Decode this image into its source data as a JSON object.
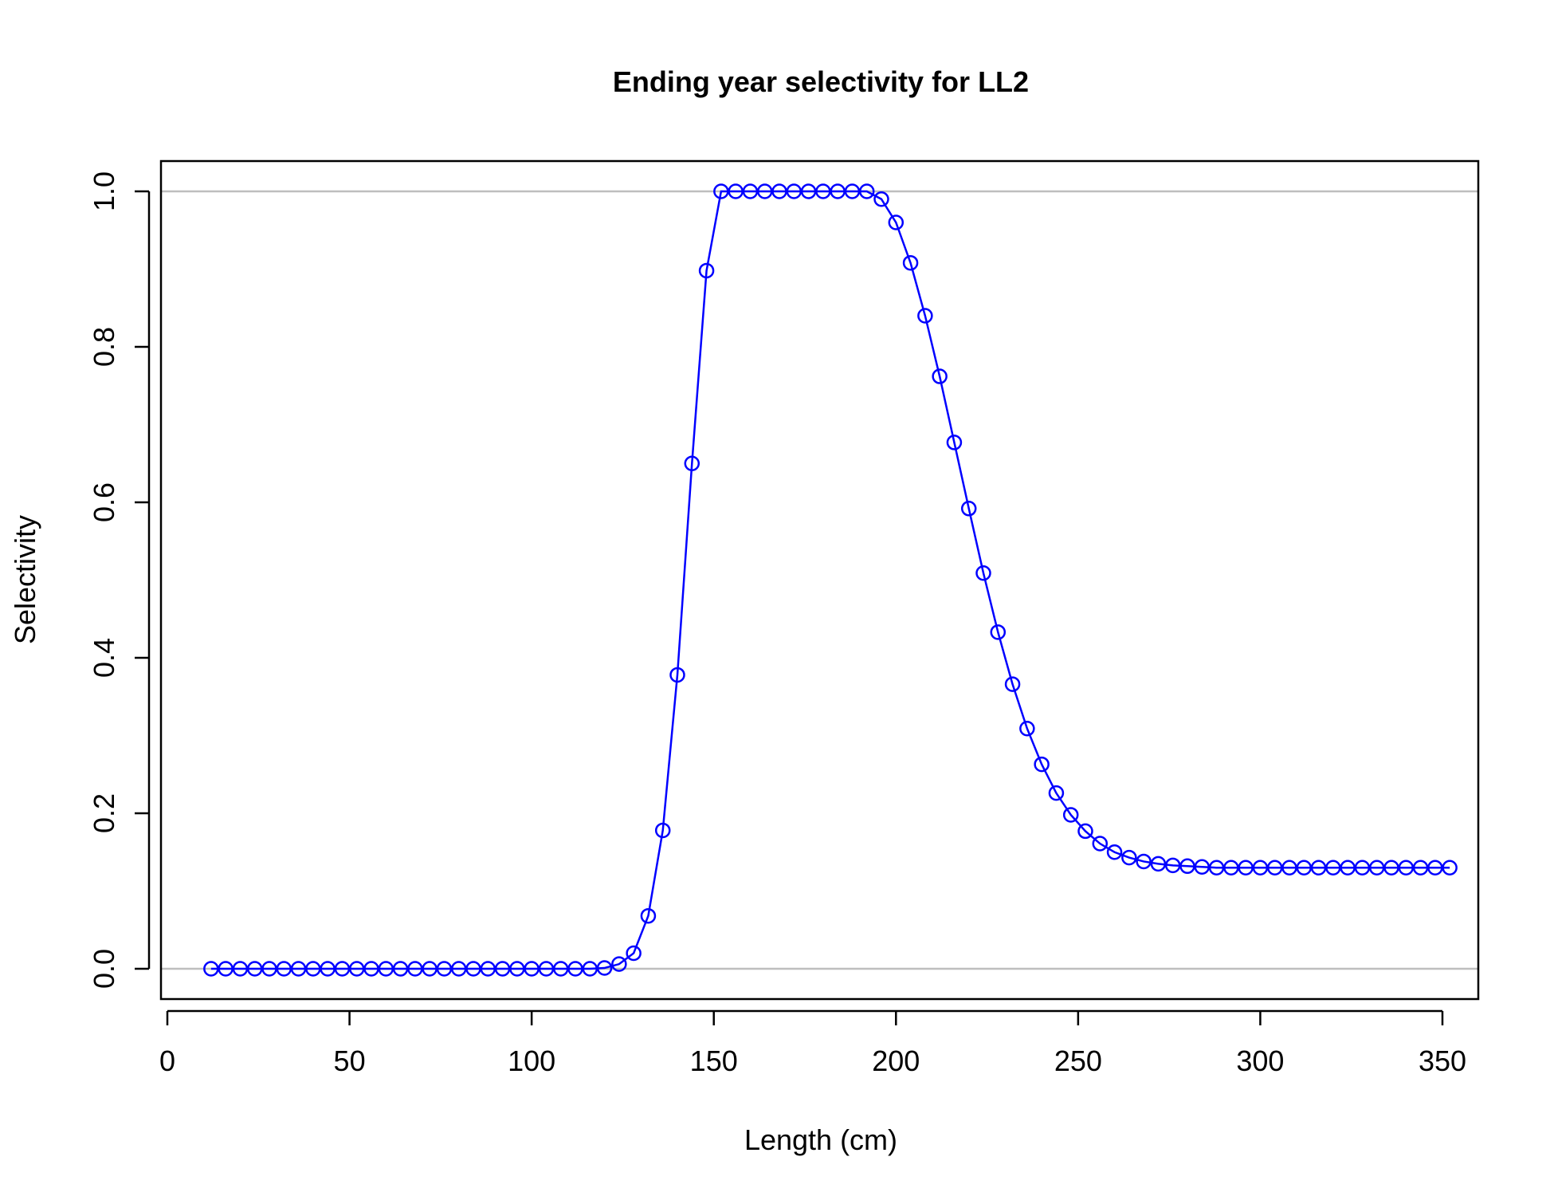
{
  "chart_data": {
    "type": "line",
    "title": "Ending year selectivity for LL2",
    "xlabel": "Length (cm)",
    "ylabel": "Selectivity",
    "xlim": [
      0,
      350
    ],
    "ylim": [
      0,
      1
    ],
    "x_ticks": [
      "0",
      "50",
      "100",
      "150",
      "200",
      "250",
      "300",
      "350"
    ],
    "y_ticks": [
      "0.0",
      "0.2",
      "0.4",
      "0.6",
      "0.8",
      "1.0"
    ],
    "reference_lines": [
      0,
      1
    ],
    "colors": {
      "series": "#0000ff",
      "reference": "#bebebe",
      "axes": "#000000"
    },
    "series": [
      {
        "x": [
          12,
          16,
          20,
          24,
          28,
          32,
          36,
          40,
          44,
          48,
          52,
          56,
          60,
          64,
          68,
          72,
          76,
          80,
          84,
          88,
          92,
          96,
          100,
          104,
          108,
          112,
          116,
          120,
          124,
          128,
          132,
          136,
          140,
          144,
          148,
          152,
          156,
          160,
          164,
          168,
          172,
          176,
          180,
          184,
          188,
          192,
          196,
          200,
          204,
          208,
          212,
          216,
          220,
          224,
          228,
          232,
          236,
          240,
          244,
          248,
          252,
          256,
          260,
          264,
          268,
          272,
          276,
          280,
          284,
          288,
          292,
          296,
          300,
          304,
          308,
          312,
          316,
          320,
          324,
          328,
          332,
          336,
          340,
          344,
          348,
          352
        ],
        "y": [
          0,
          0,
          0,
          0,
          0,
          0,
          0,
          0,
          0,
          0,
          0,
          0,
          0,
          0,
          0,
          0,
          0,
          0,
          0,
          0,
          0,
          0,
          0,
          0,
          0,
          0,
          0,
          0.001,
          0.006,
          0.02,
          0.068,
          0.178,
          0.378,
          0.65,
          0.898,
          1,
          1,
          1,
          1,
          1,
          1,
          1,
          1,
          1,
          1,
          1,
          0.99,
          0.96,
          0.908,
          0.84,
          0.762,
          0.677,
          0.592,
          0.509,
          0.433,
          0.366,
          0.309,
          0.263,
          0.226,
          0.198,
          0.177,
          0.161,
          0.15,
          0.143,
          0.138,
          0.135,
          0.133,
          0.132,
          0.131,
          0.13,
          0.13,
          0.13,
          0.13,
          0.13,
          0.13,
          0.13,
          0.13,
          0.13,
          0.13,
          0.13,
          0.13,
          0.13,
          0.13,
          0.13,
          0.13,
          0.13
        ]
      }
    ]
  }
}
